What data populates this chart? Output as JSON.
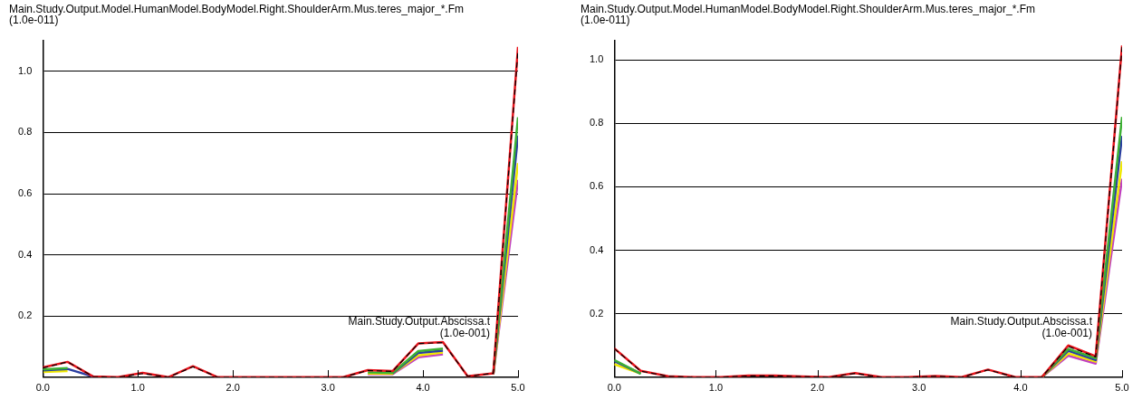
{
  "chart_data": [
    {
      "type": "line",
      "title": "Main.Study.Output.Model.HumanModel.BodyModel.Right.ShoulderArm.Mus.teres_major_*.Fm",
      "ylabel": "(1.0e-011)",
      "xlabel": "Main.Study.Output.Abscissa.t\n(1.0e-001)",
      "x": [
        0,
        0.26,
        0.53,
        0.79,
        1.05,
        1.32,
        1.58,
        1.84,
        2.11,
        2.37,
        2.63,
        2.89,
        3.16,
        3.42,
        3.68,
        3.95,
        4.21,
        4.47,
        4.74,
        5.0
      ],
      "series": [
        {
          "color": "#000000",
          "line_style": "dashed",
          "values": [
            0.03,
            0.05,
            0.002,
            0,
            0.012,
            0,
            0.034,
            0,
            0,
            0,
            0,
            0,
            0,
            0.022,
            0.019,
            0.11,
            0.113,
            0.003,
            0.013,
            1.07
          ]
        },
        {
          "color": "#e8141c",
          "values": [
            0.032,
            0.05,
            0.002,
            0,
            0.014,
            0,
            0.036,
            0,
            0,
            0,
            0,
            0,
            0,
            0.023,
            0.02,
            0.11,
            0.115,
            0.003,
            0.013,
            1.08
          ]
        },
        {
          "color": "#3cb034",
          "values": [
            0.025,
            0.03,
            null,
            null,
            null,
            null,
            null,
            null,
            null,
            null,
            null,
            null,
            null,
            0.016,
            0.014,
            0.085,
            0.093,
            null,
            0.01,
            0.85
          ]
        },
        {
          "color": "#2a3ea0",
          "values": [
            0.022,
            0.027,
            0.002,
            null,
            null,
            null,
            null,
            null,
            null,
            null,
            null,
            null,
            null,
            null,
            0.012,
            0.079,
            0.087,
            null,
            0.01,
            0.79
          ]
        },
        {
          "color": "#f0e800",
          "values": [
            0.017,
            0.02,
            null,
            null,
            null,
            null,
            null,
            null,
            null,
            null,
            null,
            null,
            null,
            0.012,
            0.011,
            0.071,
            0.081,
            null,
            0.01,
            0.7
          ]
        },
        {
          "color": "#c040c0",
          "values": [
            null,
            null,
            null,
            null,
            null,
            null,
            null,
            null,
            null,
            null,
            null,
            null,
            null,
            0.01,
            0.01,
            0.065,
            0.075,
            null,
            0.01,
            0.645
          ]
        }
      ],
      "xlim": [
        0,
        5
      ],
      "xticks": [
        {
          "value": 0,
          "label": "0.0"
        },
        {
          "value": 1,
          "label": "1.0"
        },
        {
          "value": 2,
          "label": "2.0"
        },
        {
          "value": 3,
          "label": "3.0"
        },
        {
          "value": 4,
          "label": "4.0"
        },
        {
          "value": 5,
          "label": "5.0"
        }
      ],
      "ylim": [
        0,
        1.1
      ],
      "yticks": [
        0.2,
        0.4,
        0.6,
        0.8,
        {
          "value": 1,
          "label": "1.0"
        }
      ],
      "grid": "y",
      "legend": false,
      "marker": "none"
    },
    {
      "type": "line",
      "title": "Main.Study.Output.Model.HumanModel.BodyModel.Right.ShoulderArm.Mus.teres_major_*.Fm",
      "ylabel": "(1.0e-011)",
      "xlabel": "Main.Study.Output.Abscissa.t\n(1.0e-001)",
      "x": [
        0,
        0.26,
        0.53,
        0.79,
        1.05,
        1.32,
        1.58,
        1.84,
        2.11,
        2.37,
        2.63,
        2.89,
        3.16,
        3.42,
        3.68,
        3.95,
        4.21,
        4.47,
        4.74,
        5.0
      ],
      "series": [
        {
          "color": "#000000",
          "line_style": "dashed",
          "values": [
            0.09,
            0.019,
            0.003,
            0,
            0,
            0.004,
            0.004,
            0.002,
            0,
            0.012,
            0,
            0,
            0.003,
            0,
            0.023,
            0,
            0,
            0.097,
            0.064,
            1.04
          ]
        },
        {
          "color": "#e8141c",
          "values": [
            0.091,
            0.02,
            0.003,
            0,
            0,
            0.005,
            0.005,
            0.002,
            0,
            0.013,
            0,
            0,
            0.004,
            0,
            0.024,
            0,
            0,
            0.1,
            0.066,
            1.045
          ]
        },
        {
          "color": "#3cb034",
          "values": [
            0.054,
            0.011,
            null,
            null,
            null,
            null,
            null,
            null,
            null,
            null,
            null,
            null,
            null,
            null,
            null,
            null,
            0,
            0.089,
            0.06,
            0.82
          ]
        },
        {
          "color": "#2a3ea0",
          "values": [
            0.051,
            0.011,
            null,
            null,
            null,
            null,
            null,
            null,
            null,
            null,
            null,
            null,
            null,
            null,
            null,
            null,
            0,
            0.083,
            0.054,
            0.76
          ]
        },
        {
          "color": "#f0e800",
          "values": [
            0.041,
            0.011,
            null,
            null,
            null,
            null,
            null,
            null,
            null,
            null,
            null,
            null,
            null,
            null,
            null,
            null,
            0,
            0.075,
            0.049,
            0.68
          ]
        },
        {
          "color": "#c040c0",
          "values": [
            null,
            null,
            null,
            null,
            null,
            null,
            null,
            null,
            null,
            null,
            null,
            null,
            null,
            null,
            null,
            null,
            0,
            0.068,
            0.043,
            0.625
          ]
        }
      ],
      "xlim": [
        0,
        5
      ],
      "xticks": [
        {
          "value": 0,
          "label": "0.0"
        },
        {
          "value": 1,
          "label": "1.0"
        },
        {
          "value": 2,
          "label": "2.0"
        },
        {
          "value": 3,
          "label": "3.0"
        },
        {
          "value": 4,
          "label": "4.0"
        },
        {
          "value": 5,
          "label": "5.0"
        }
      ],
      "ylim": [
        0,
        1.06
      ],
      "yticks": [
        0.2,
        0.4,
        0.6,
        0.8,
        {
          "value": 1,
          "label": "1.0"
        }
      ],
      "grid": "y",
      "legend": false,
      "marker": "none"
    }
  ]
}
